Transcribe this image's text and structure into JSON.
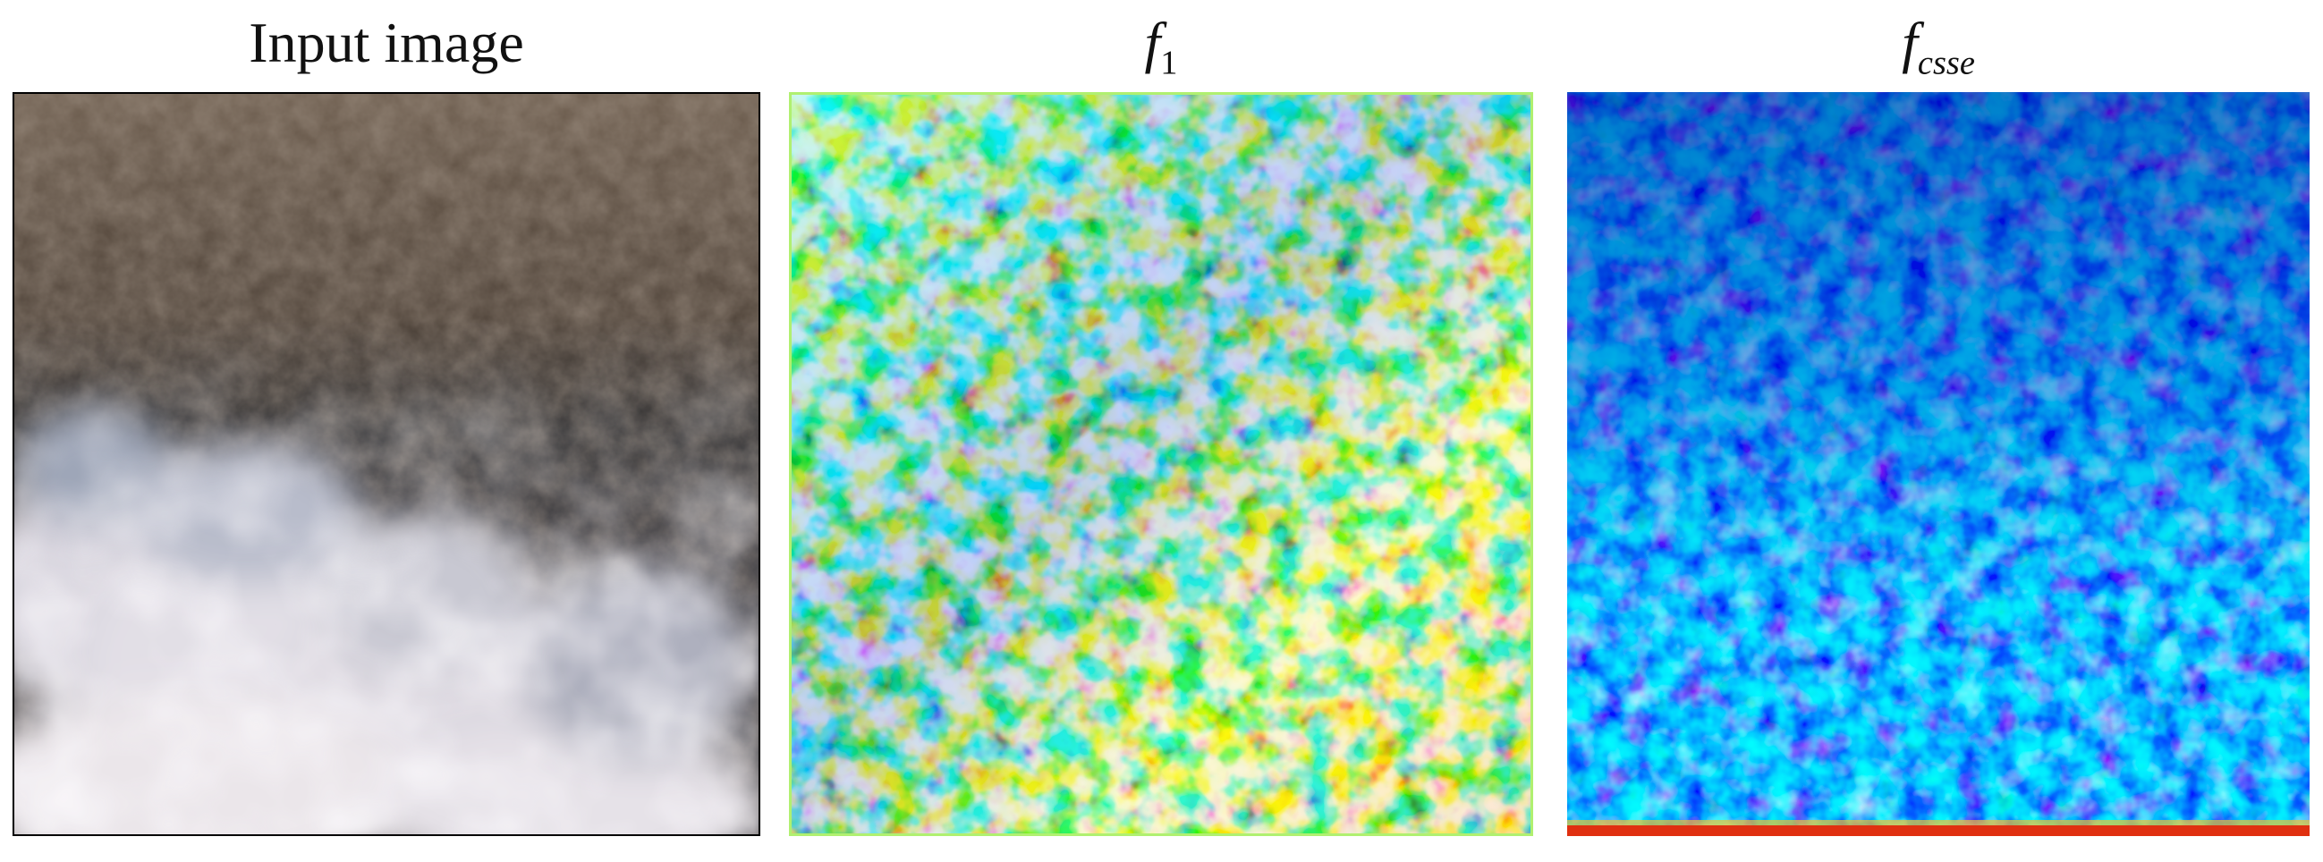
{
  "panels": [
    {
      "id": "input",
      "title": "Input image",
      "content": "satellite image: dark brown mountainous terrain with white cloud mass in lower part"
    },
    {
      "id": "f1",
      "title_symbol": "f",
      "title_subscript": "1",
      "content": "jet colormap feature heatmap, mostly cyan/yellow with red hot spots"
    },
    {
      "id": "fcsse",
      "title_symbol": "f",
      "title_subscript": "csse",
      "content": "jet colormap feature heatmap, mostly blue with cyan patches, red bottom edge"
    }
  ],
  "colors": {
    "background": "#ffffff",
    "terrain": "#5a4a3e",
    "cloud": "#e8e4ea",
    "jet_blue": "#0030c8",
    "jet_cyan": "#30d0f0",
    "jet_yellow": "#f0f040",
    "jet_red": "#e02010"
  }
}
